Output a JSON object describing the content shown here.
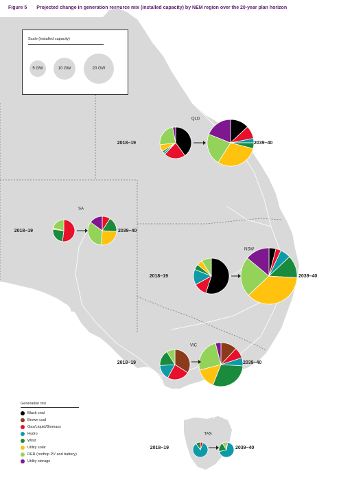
{
  "figure": {
    "number": "Figure 5",
    "title": "Projected change in generation resource mix (installed capacity) by NEM region over the 20-year plan horizon"
  },
  "scale": {
    "title": "Scale (installed capacity)",
    "items": [
      {
        "label": "5 GW",
        "value": 5
      },
      {
        "label": "10 GW",
        "value": 10
      },
      {
        "label": "20 GW",
        "value": 20
      }
    ]
  },
  "legend": {
    "title": "Generation mix",
    "items": [
      {
        "label": "Black coal",
        "color": "#000000"
      },
      {
        "label": "Brown coal",
        "color": "#8b3a1a"
      },
      {
        "label": "Gas/Liquid/Biomass",
        "color": "#e8102a"
      },
      {
        "label": "Hydro",
        "color": "#0e9aa7"
      },
      {
        "label": "Wind",
        "color": "#1a8a3c"
      },
      {
        "label": "Utility solar",
        "color": "#ffc20e"
      },
      {
        "label": "DER (rooftop PV and battery)",
        "color": "#93d35a"
      },
      {
        "label": "Utility storage",
        "color": "#7f1890"
      }
    ]
  },
  "regions": [
    {
      "name": "QLD",
      "before": {
        "label": "2018–19",
        "mix": [
          40,
          0,
          22,
          2,
          2,
          7,
          24,
          3
        ]
      },
      "after": {
        "label": "2039–40",
        "mix": [
          13,
          0,
          9,
          3,
          4,
          30,
          22,
          19
        ]
      }
    },
    {
      "name": "SA",
      "before": {
        "label": "2018–19",
        "mix": [
          0,
          0,
          52,
          0,
          25,
          2,
          21,
          0
        ]
      },
      "after": {
        "label": "2039–40",
        "mix": [
          0,
          0,
          9,
          0,
          17,
          25,
          34,
          15
        ]
      }
    },
    {
      "name": "NSW",
      "before": {
        "label": "2018–19",
        "mix": [
          55,
          0,
          12,
          14,
          5,
          5,
          9,
          0
        ]
      },
      "after": {
        "label": "2039–40",
        "mix": [
          4,
          0,
          3,
          6,
          13,
          37,
          23,
          14
        ]
      }
    },
    {
      "name": "VIC",
      "before": {
        "label": "2018–19",
        "mix": [
          0,
          34,
          24,
          16,
          17,
          0,
          9,
          0
        ]
      },
      "after": {
        "label": "2039–40",
        "mix": [
          0,
          12,
          8,
          6,
          30,
          15,
          25,
          4
        ]
      }
    },
    {
      "name": "TAS",
      "before": {
        "label": "2018–19",
        "mix": [
          0,
          0,
          6,
          84,
          10,
          0,
          0,
          0
        ]
      },
      "after": {
        "label": "2039–40",
        "mix": [
          0,
          0,
          3,
          68,
          20,
          0,
          9,
          0
        ]
      }
    }
  ]
}
